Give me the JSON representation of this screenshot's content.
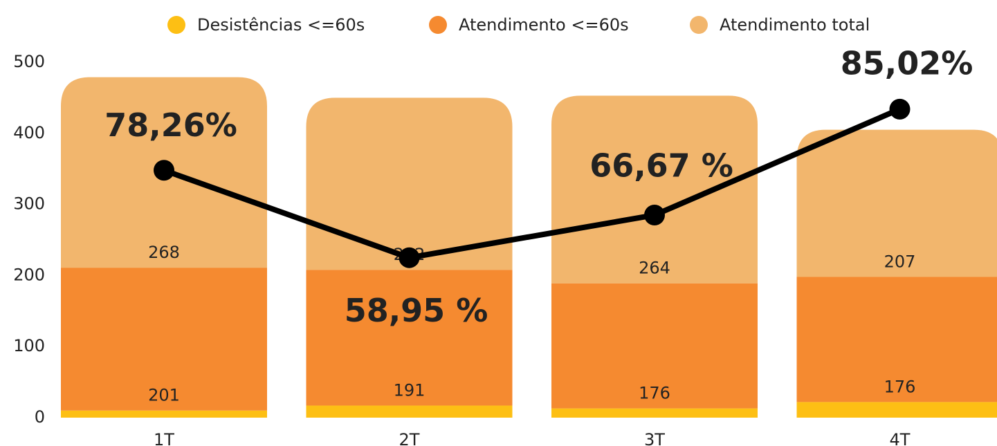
{
  "chart_data": {
    "type": "bar",
    "stacked": true,
    "categories": [
      "1T",
      "2T",
      "3T",
      "4T"
    ],
    "series": [
      {
        "name": "Desistências <=60s",
        "color": "#fdbf14",
        "values": [
          10,
          17,
          13,
          22
        ]
      },
      {
        "name": "Atendimento <=60s",
        "color": "#f58a30",
        "values": [
          201,
          191,
          176,
          176
        ]
      },
      {
        "name": "Atendimento total",
        "color": "#f2b66d",
        "values": [
          268,
          242,
          264,
          207
        ]
      }
    ],
    "line": {
      "color": "#000000",
      "values": [
        348,
        225,
        285,
        434
      ]
    },
    "annotations": [
      "78,26%",
      "58,95 %",
      "66,67 %",
      "85,02%"
    ],
    "ylim": [
      0,
      500
    ],
    "yticks": [
      0,
      100,
      200,
      300,
      400,
      500
    ],
    "grid": false,
    "legend": "top"
  }
}
